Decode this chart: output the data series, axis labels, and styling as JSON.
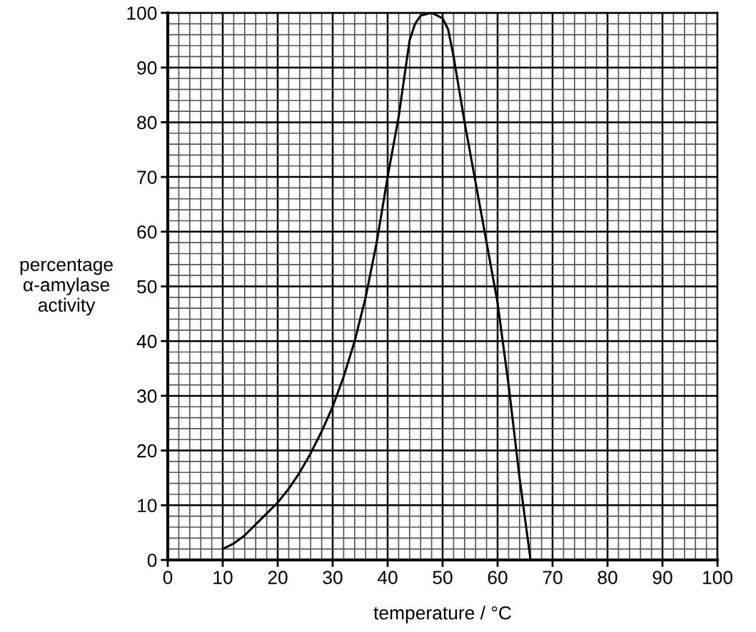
{
  "chart_data": {
    "type": "line",
    "xlabel": "temperature / °C",
    "ylabel": "percentage\nα-amylase\nactivity",
    "x": [
      10,
      12,
      14,
      16,
      18,
      20,
      22,
      24,
      26,
      28,
      30,
      32,
      34,
      36,
      38,
      40,
      42,
      43,
      44,
      45,
      46,
      48,
      50,
      51,
      52,
      54,
      56,
      58,
      60,
      62,
      64,
      66
    ],
    "series": [
      {
        "color": "#000000",
        "values": [
          2,
          3,
          4.5,
          6.5,
          8.5,
          10.5,
          13,
          16,
          19.5,
          23.5,
          28,
          33.5,
          40,
          48,
          58,
          70,
          81,
          88,
          95,
          98,
          99.5,
          100,
          99,
          97,
          92,
          80,
          69,
          58,
          47,
          32,
          15,
          0
        ]
      }
    ],
    "xlim": [
      0,
      100
    ],
    "ylim": [
      0,
      100
    ],
    "xticks": [
      0,
      10,
      20,
      30,
      40,
      50,
      60,
      70,
      80,
      90,
      100
    ],
    "yticks": [
      0,
      10,
      20,
      30,
      40,
      50,
      60,
      70,
      80,
      90,
      100
    ],
    "grid": true,
    "marker": "none",
    "line_style": "solid"
  }
}
